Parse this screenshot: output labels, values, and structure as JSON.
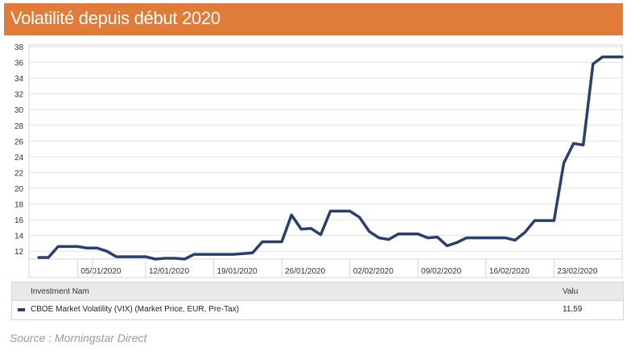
{
  "header": {
    "title": "Volatilité depuis début 2020",
    "bg_color": "#e07b39"
  },
  "chart_data": {
    "type": "line",
    "title": "Volatilité depuis début 2020",
    "xlabel": "",
    "ylabel": "",
    "ylim": [
      10,
      38
    ],
    "y_ticks": [
      12,
      14,
      16,
      18,
      20,
      22,
      24,
      26,
      28,
      30,
      32,
      34,
      36,
      38
    ],
    "x_tick_labels": [
      "05/01/2020",
      "12/01/2020",
      "19/01/2020",
      "26/01/2020",
      "02/02/2020",
      "09/02/2020",
      "16/02/2020",
      "23/02/2020"
    ],
    "x_tick_dates": [
      "2020-01-05",
      "2020-01-12",
      "2020-01-19",
      "2020-01-26",
      "2020-02-02",
      "2020-02-09",
      "2020-02-16",
      "2020-02-23"
    ],
    "xlim": [
      "2019-12-31",
      "2020-03-01"
    ],
    "grid": "horizontal",
    "legend_position": "bottom",
    "series": [
      {
        "name": "CBOE Market Volatility (VIX) (Market Price, EUR, Pre-Tax)",
        "color": "#2b3f6f",
        "points": [
          {
            "x": "2020-01-01",
            "y": 11.2
          },
          {
            "x": "2020-01-02",
            "y": 11.2
          },
          {
            "x": "2020-01-03",
            "y": 12.6
          },
          {
            "x": "2020-01-04",
            "y": 12.6
          },
          {
            "x": "2020-01-05",
            "y": 12.6
          },
          {
            "x": "2020-01-06",
            "y": 12.4
          },
          {
            "x": "2020-01-07",
            "y": 12.4
          },
          {
            "x": "2020-01-08",
            "y": 12.0
          },
          {
            "x": "2020-01-09",
            "y": 11.3
          },
          {
            "x": "2020-01-10",
            "y": 11.3
          },
          {
            "x": "2020-01-11",
            "y": 11.3
          },
          {
            "x": "2020-01-12",
            "y": 11.3
          },
          {
            "x": "2020-01-13",
            "y": 11.0
          },
          {
            "x": "2020-01-14",
            "y": 11.1
          },
          {
            "x": "2020-01-15",
            "y": 11.1
          },
          {
            "x": "2020-01-16",
            "y": 11.0
          },
          {
            "x": "2020-01-17",
            "y": 11.6
          },
          {
            "x": "2020-01-18",
            "y": 11.6
          },
          {
            "x": "2020-01-19",
            "y": 11.6
          },
          {
            "x": "2020-01-20",
            "y": 11.6
          },
          {
            "x": "2020-01-21",
            "y": 11.6
          },
          {
            "x": "2020-01-22",
            "y": 11.7
          },
          {
            "x": "2020-01-23",
            "y": 11.8
          },
          {
            "x": "2020-01-24",
            "y": 13.2
          },
          {
            "x": "2020-01-25",
            "y": 13.2
          },
          {
            "x": "2020-01-26",
            "y": 13.2
          },
          {
            "x": "2020-01-27",
            "y": 16.6
          },
          {
            "x": "2020-01-28",
            "y": 14.8
          },
          {
            "x": "2020-01-29",
            "y": 14.9
          },
          {
            "x": "2020-01-30",
            "y": 14.1
          },
          {
            "x": "2020-01-31",
            "y": 17.1
          },
          {
            "x": "2020-02-01",
            "y": 17.1
          },
          {
            "x": "2020-02-02",
            "y": 17.1
          },
          {
            "x": "2020-02-03",
            "y": 16.3
          },
          {
            "x": "2020-02-04",
            "y": 14.5
          },
          {
            "x": "2020-02-05",
            "y": 13.7
          },
          {
            "x": "2020-02-06",
            "y": 13.5
          },
          {
            "x": "2020-02-07",
            "y": 14.2
          },
          {
            "x": "2020-02-08",
            "y": 14.2
          },
          {
            "x": "2020-02-09",
            "y": 14.2
          },
          {
            "x": "2020-02-10",
            "y": 13.7
          },
          {
            "x": "2020-02-11",
            "y": 13.8
          },
          {
            "x": "2020-02-12",
            "y": 12.7
          },
          {
            "x": "2020-02-13",
            "y": 13.1
          },
          {
            "x": "2020-02-14",
            "y": 13.7
          },
          {
            "x": "2020-02-15",
            "y": 13.7
          },
          {
            "x": "2020-02-16",
            "y": 13.7
          },
          {
            "x": "2020-02-17",
            "y": 13.7
          },
          {
            "x": "2020-02-18",
            "y": 13.7
          },
          {
            "x": "2020-02-19",
            "y": 13.4
          },
          {
            "x": "2020-02-20",
            "y": 14.4
          },
          {
            "x": "2020-02-21",
            "y": 15.9
          },
          {
            "x": "2020-02-22",
            "y": 15.9
          },
          {
            "x": "2020-02-23",
            "y": 15.9
          },
          {
            "x": "2020-02-24",
            "y": 23.2
          },
          {
            "x": "2020-02-25",
            "y": 25.7
          },
          {
            "x": "2020-02-26",
            "y": 25.5
          },
          {
            "x": "2020-02-27",
            "y": 35.8
          },
          {
            "x": "2020-02-28",
            "y": 36.7
          },
          {
            "x": "2020-02-29",
            "y": 36.7
          },
          {
            "x": "2020-03-01",
            "y": 36.7
          }
        ]
      }
    ]
  },
  "legend": {
    "header_name": "Investment Nam",
    "header_value": "Valu",
    "rows": [
      {
        "name": "CBOE Market Volatility (VIX) (Market Price, EUR, Pre-Tax)",
        "value": "11,59",
        "color": "#2b3f6f"
      }
    ]
  },
  "source": "Source : Morningstar Direct"
}
